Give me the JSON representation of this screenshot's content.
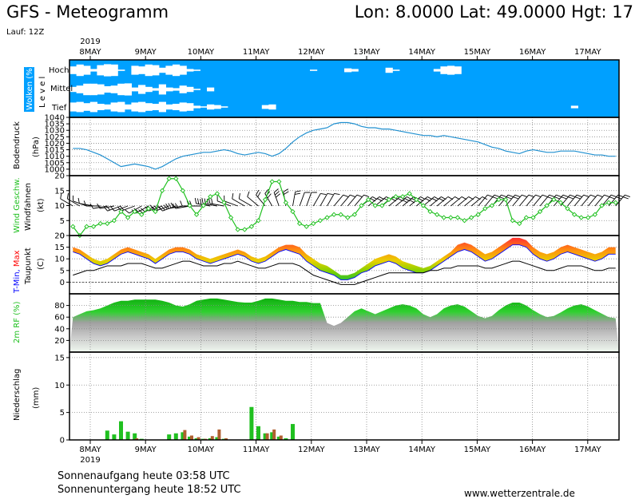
{
  "header": {
    "title": "GFS - Meteogramm",
    "location": "Lon: 8.0000  Lat: 49.0000  Hgt: 17",
    "run": "Lauf: 12Z"
  },
  "footer": {
    "sunrise": "Sonnenaufgang heute 03:58 UTC",
    "sunset": "Sonnenuntergang heute 18:52 UTC",
    "source": "www.wetterzentrale.de"
  },
  "colors": {
    "cloud_bg": "#00a0ff",
    "cloud": "#ffffff",
    "pressure": "#2090d0",
    "wind": "#20c020",
    "tmin": "#0000ff",
    "tmax": "#ff0000",
    "humidity": "#20c020",
    "rain": "#20c020",
    "snow_mix": "#b06030"
  },
  "chart_data": {
    "type": "line",
    "year": "2019",
    "days": [
      "8MAY",
      "9MAY",
      "10MAY",
      "11MAY",
      "12MAY",
      "13MAY",
      "14MAY",
      "15MAY",
      "16MAY",
      "17MAY"
    ],
    "hours_step": 3,
    "panels": [
      {
        "id": "clouds",
        "ylabel": "Wolken (%)",
        "ylabel2": "L e v e l",
        "levels": [
          "Hoch",
          "Mittel",
          "Tief"
        ],
        "hoch": [
          60,
          90,
          70,
          20,
          80,
          95,
          90,
          10,
          0,
          70,
          60,
          90,
          80,
          40,
          70,
          90,
          70,
          20,
          10,
          0,
          0,
          0,
          0,
          0,
          0,
          0,
          0,
          0,
          0,
          0,
          0,
          0,
          0,
          0,
          0,
          10,
          0,
          0,
          0,
          0,
          30,
          20,
          0,
          0,
          0,
          0,
          40,
          10,
          0,
          0,
          0,
          0,
          0,
          20,
          60,
          70,
          60,
          0,
          0,
          0,
          0,
          0,
          0,
          0,
          0,
          0,
          0,
          0,
          0,
          0,
          0,
          0,
          0,
          0,
          0,
          0,
          0,
          0,
          0,
          0
        ],
        "mittel": [
          40,
          60,
          90,
          90,
          80,
          50,
          60,
          90,
          95,
          30,
          70,
          40,
          20,
          80,
          30,
          20,
          60,
          40,
          10,
          0,
          30,
          0,
          0,
          0,
          0,
          0,
          0,
          0,
          0,
          0,
          0,
          0,
          0,
          0,
          0,
          0,
          0,
          0,
          0,
          0,
          0,
          0,
          0,
          0,
          0,
          0,
          0,
          0,
          0,
          0,
          0,
          0,
          0,
          0,
          0,
          0,
          0,
          0,
          0,
          0,
          0,
          0,
          0,
          0,
          0,
          0,
          0,
          0,
          0,
          0,
          0,
          0,
          0,
          0,
          0,
          0,
          0,
          0,
          0,
          0
        ],
        "tief": [
          70,
          80,
          60,
          80,
          50,
          40,
          70,
          80,
          40,
          70,
          80,
          60,
          50,
          80,
          40,
          50,
          70,
          60,
          20,
          10,
          40,
          30,
          10,
          0,
          0,
          0,
          0,
          0,
          30,
          40,
          0,
          0,
          0,
          0,
          0,
          0,
          0,
          0,
          0,
          0,
          0,
          0,
          0,
          0,
          0,
          0,
          0,
          0,
          0,
          0,
          0,
          0,
          0,
          0,
          0,
          0,
          0,
          0,
          0,
          0,
          0,
          0,
          0,
          0,
          0,
          0,
          0,
          0,
          0,
          0,
          0,
          0,
          0,
          20,
          0,
          0,
          0,
          0,
          0,
          0
        ]
      },
      {
        "id": "pressure",
        "ylabel": "Bodendruck",
        "ylabel2": "(hPa)",
        "ylim": [
          995,
          1040
        ],
        "ticks": [
          1000,
          1005,
          1010,
          1015,
          1020,
          1025,
          1030,
          1035,
          1040
        ],
        "values": [
          1016,
          1016,
          1015,
          1013,
          1011,
          1008,
          1005,
          1002,
          1003,
          1004,
          1003,
          1002,
          1000,
          1002,
          1005,
          1008,
          1010,
          1011,
          1012,
          1013,
          1013,
          1014,
          1015,
          1014,
          1012,
          1011,
          1012,
          1013,
          1012,
          1010,
          1012,
          1016,
          1021,
          1025,
          1028,
          1030,
          1031,
          1032,
          1035,
          1036,
          1036,
          1035,
          1033,
          1032,
          1032,
          1031,
          1031,
          1030,
          1029,
          1028,
          1027,
          1026,
          1026,
          1025,
          1026,
          1025,
          1024,
          1023,
          1022,
          1021,
          1019,
          1017,
          1016,
          1014,
          1013,
          1012,
          1014,
          1015,
          1014,
          1013,
          1013,
          1014,
          1014,
          1014,
          1013,
          1012,
          1011,
          1011,
          1010,
          1010
        ]
      },
      {
        "id": "wind",
        "ylabel": "Wind Geschw.",
        "ylabel2": "Windfahnen",
        "ylabel3": "(kt)",
        "ylim": [
          0,
          20
        ],
        "ticks": [
          0,
          5,
          10,
          15,
          20
        ],
        "values": [
          3,
          0,
          3,
          3,
          4,
          4,
          5,
          8,
          6,
          8,
          7,
          9,
          8,
          15,
          19,
          19,
          15,
          10,
          7,
          10,
          13,
          14,
          11,
          6,
          2,
          2,
          3,
          5,
          12,
          18,
          18,
          11,
          8,
          4,
          3,
          4,
          5,
          6,
          7,
          7,
          6,
          7,
          10,
          12,
          10,
          10,
          12,
          13,
          13,
          14,
          12,
          10,
          8,
          7,
          6,
          6,
          6,
          5,
          6,
          7,
          9,
          10,
          12,
          12,
          5,
          4,
          6,
          6,
          8,
          10,
          12,
          11,
          9,
          7,
          6,
          6,
          7,
          10,
          11,
          11
        ],
        "direction_deg": [
          300,
          300,
          290,
          280,
          270,
          260,
          260,
          250,
          250,
          250,
          240,
          240,
          240,
          250,
          250,
          250,
          260,
          260,
          270,
          270,
          280,
          280,
          280,
          290,
          290,
          300,
          300,
          310,
          320,
          330,
          340,
          350,
          10,
          20,
          20,
          30,
          30,
          30,
          40,
          40,
          40,
          40,
          50,
          50,
          50,
          50,
          50,
          50,
          50,
          50,
          50,
          50,
          50,
          50,
          50,
          50,
          50,
          50,
          50,
          40,
          40,
          40,
          40,
          40,
          40,
          40,
          40,
          40,
          40,
          40,
          40,
          40,
          40,
          40,
          40,
          40,
          40,
          40,
          40,
          40
        ]
      },
      {
        "id": "temperature",
        "ylabel": "T-Min, Max",
        "ylabel2": "Taupunkt",
        "ylabel3": "(C)",
        "ylim": [
          -5,
          20
        ],
        "ticks": [
          0,
          5,
          10,
          15,
          20
        ],
        "tmax": [
          15,
          14,
          12,
          10,
          9,
          10,
          12,
          14,
          15,
          14,
          13,
          12,
          10,
          12,
          14,
          15,
          15,
          14,
          12,
          11,
          10,
          11,
          12,
          13,
          14,
          13,
          11,
          10,
          11,
          13,
          15,
          16,
          16,
          15,
          12,
          10,
          8,
          7,
          5,
          3,
          3,
          4,
          6,
          8,
          10,
          11,
          12,
          11,
          9,
          8,
          7,
          6,
          7,
          9,
          11,
          13,
          16,
          17,
          16,
          14,
          12,
          13,
          15,
          17,
          19,
          19,
          18,
          15,
          13,
          12,
          13,
          15,
          16,
          15,
          14,
          13,
          12,
          13,
          15,
          15
        ],
        "tmin": [
          13,
          12,
          10,
          8,
          7,
          8,
          10,
          12,
          13,
          12,
          11,
          10,
          8,
          10,
          12,
          13,
          13,
          12,
          10,
          9,
          8,
          9,
          10,
          11,
          12,
          11,
          9,
          8,
          9,
          11,
          13,
          14,
          13,
          12,
          9,
          7,
          5,
          4,
          3,
          1,
          1,
          2,
          4,
          5,
          7,
          8,
          9,
          8,
          6,
          5,
          4,
          4,
          5,
          7,
          9,
          11,
          13,
          14,
          13,
          11,
          9,
          10,
          12,
          14,
          16,
          16,
          15,
          12,
          10,
          9,
          10,
          12,
          13,
          12,
          11,
          10,
          9,
          10,
          12,
          12
        ],
        "dewpoint": [
          3,
          4,
          5,
          5,
          6,
          7,
          7,
          7,
          8,
          8,
          8,
          7,
          6,
          6,
          7,
          8,
          9,
          9,
          8,
          7,
          7,
          7,
          8,
          8,
          9,
          8,
          7,
          6,
          6,
          7,
          8,
          8,
          8,
          7,
          5,
          3,
          2,
          1,
          0,
          -1,
          -1,
          -1,
          0,
          1,
          2,
          3,
          4,
          4,
          4,
          4,
          4,
          4,
          5,
          5,
          6,
          6,
          7,
          7,
          7,
          7,
          6,
          6,
          7,
          8,
          9,
          9,
          8,
          7,
          6,
          5,
          5,
          6,
          7,
          7,
          7,
          6,
          5,
          5,
          6,
          6
        ]
      },
      {
        "id": "humidity",
        "ylabel": "2m RF (%)",
        "ylim": [
          0,
          100
        ],
        "ticks": [
          20,
          40,
          60,
          80
        ],
        "values": [
          60,
          65,
          70,
          72,
          75,
          80,
          85,
          88,
          88,
          90,
          90,
          90,
          90,
          88,
          85,
          80,
          78,
          82,
          88,
          90,
          92,
          92,
          90,
          88,
          86,
          85,
          85,
          88,
          92,
          92,
          90,
          88,
          88,
          86,
          86,
          84,
          84,
          50,
          45,
          50,
          60,
          70,
          75,
          70,
          65,
          70,
          75,
          80,
          82,
          80,
          75,
          65,
          60,
          65,
          75,
          80,
          82,
          78,
          70,
          62,
          58,
          62,
          72,
          80,
          85,
          85,
          80,
          72,
          65,
          60,
          62,
          68,
          75,
          80,
          82,
          78,
          72,
          66,
          60,
          58
        ]
      },
      {
        "id": "precip",
        "ylabel": "Niederschlag",
        "ylabel2": "(mm)",
        "ylim": [
          0,
          16
        ],
        "ticks": [
          0,
          5,
          10,
          15
        ],
        "rain": [
          0,
          0,
          0,
          0,
          0,
          1.7,
          1.0,
          3.4,
          1.5,
          1.2,
          0.2,
          0,
          0,
          0,
          1.0,
          1.2,
          1.4,
          0.6,
          0.3,
          0.2,
          0.3,
          0.5,
          0.2,
          0,
          0,
          0,
          6.0,
          2.5,
          1.2,
          1.4,
          0.6,
          0.3,
          2.9,
          0,
          0,
          0,
          0,
          0,
          0,
          0,
          0,
          0,
          0,
          0,
          0,
          0,
          0,
          0,
          0,
          0,
          0,
          0,
          0,
          0,
          0,
          0,
          0,
          0,
          0,
          0,
          0,
          0,
          0,
          0,
          0,
          0,
          0,
          0,
          0,
          0,
          0,
          0,
          0,
          0,
          0,
          0,
          0,
          0,
          0,
          0
        ],
        "snow_mix": [
          0,
          0,
          0,
          0,
          0,
          0,
          0,
          0,
          0,
          0.3,
          0,
          0,
          0,
          0,
          0,
          0,
          1.8,
          0.8,
          0.5,
          0.2,
          0.7,
          1.9,
          0.3,
          0,
          0,
          0,
          0,
          0,
          1.2,
          1.9,
          0.8,
          0,
          0,
          0,
          0,
          0,
          0,
          0,
          0,
          0,
          0,
          0,
          0,
          0,
          0,
          0,
          0,
          0,
          0,
          0,
          0,
          0,
          0,
          0,
          0,
          0,
          0,
          0,
          0,
          0,
          0,
          0,
          0,
          0,
          0,
          0,
          0,
          0,
          0,
          0,
          0,
          0,
          0,
          0,
          0,
          0,
          0,
          0,
          0,
          0
        ]
      }
    ]
  }
}
